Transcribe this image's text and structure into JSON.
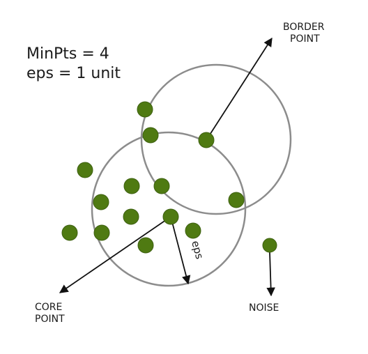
{
  "params": {
    "minpts": "MinPts = 4",
    "eps": "eps = 1 unit"
  },
  "labels": {
    "border_line1": "BORDER",
    "border_line2": "POINT",
    "core_line1": "CORE",
    "core_line2": "POINT",
    "noise": "NOISE",
    "eps_arrow": "eps"
  },
  "colors": {
    "point_fill": "#4f7a12",
    "point_stroke": "#3d6010",
    "circle_stroke": "#8c8c8c",
    "arrow": "#111111"
  }
}
